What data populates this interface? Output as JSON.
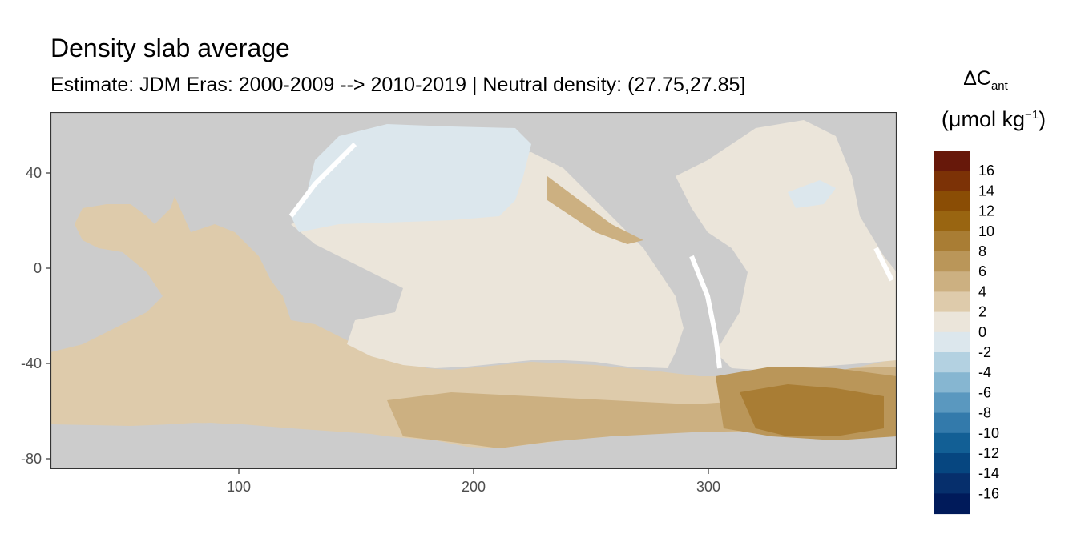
{
  "title": "Density slab average",
  "subtitle": "Estimate: JDM Eras: 2000-2009 --> 2010-2019 | Neutral density: (27.75,27.85]",
  "legend": {
    "title_symbol": "ΔC",
    "title_sub": "ant",
    "unit_prefix": "(μmol kg",
    "unit_sup": "−1",
    "unit_suffix": ")",
    "bins": [
      {
        "label": "16",
        "color": "#67180a"
      },
      {
        "label": "14",
        "color": "#7c3206"
      },
      {
        "label": "12",
        "color": "#8a4d05"
      },
      {
        "label": "10",
        "color": "#996511"
      },
      {
        "label": "8",
        "color": "#a97d34"
      },
      {
        "label": "6",
        "color": "#ba9659"
      },
      {
        "label": "4",
        "color": "#ccb081"
      },
      {
        "label": "2",
        "color": "#decbab"
      },
      {
        "label": "0",
        "color": "#ebe5da"
      },
      {
        "label": "-2",
        "color": "#dce7ed"
      },
      {
        "label": "-4",
        "color": "#b3d1e1"
      },
      {
        "label": "-6",
        "color": "#86b6d1"
      },
      {
        "label": "-8",
        "color": "#5a98bf"
      },
      {
        "label": "-10",
        "color": "#337aab"
      },
      {
        "label": "-12",
        "color": "#125f95"
      },
      {
        "label": "-14",
        "color": "#064680"
      },
      {
        "label": "-16",
        "color": "#062f6c"
      },
      {
        "label": "",
        "color": "#001a5a"
      }
    ]
  },
  "map": {
    "x_ticks": [
      "100",
      "200",
      "300"
    ],
    "y_ticks": [
      "40",
      "0",
      "-40",
      "-80"
    ],
    "x_range": [
      20,
      380
    ],
    "y_range": [
      -85,
      65
    ],
    "land_color": "#cccccc",
    "panel_border_color": "#333333"
  }
}
